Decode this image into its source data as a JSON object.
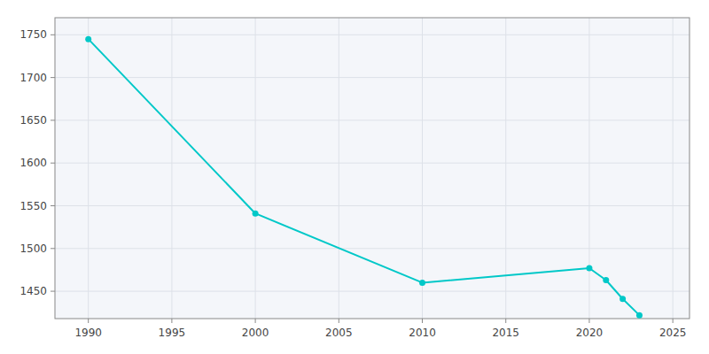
{
  "chart_data": {
    "type": "line",
    "x": [
      1990,
      2000,
      2010,
      2020,
      2021,
      2022,
      2023
    ],
    "values": [
      1745,
      1541,
      1460,
      1477,
      1463,
      1441,
      1422
    ],
    "color": "#00C8C8",
    "marker": "circle",
    "xlim": [
      1988,
      2026
    ],
    "ylim": [
      1418,
      1770
    ],
    "xticks": [
      1990,
      1995,
      2000,
      2005,
      2010,
      2015,
      2020,
      2025
    ],
    "yticks": [
      1450,
      1500,
      1550,
      1600,
      1650,
      1700,
      1750
    ],
    "grid": true
  }
}
